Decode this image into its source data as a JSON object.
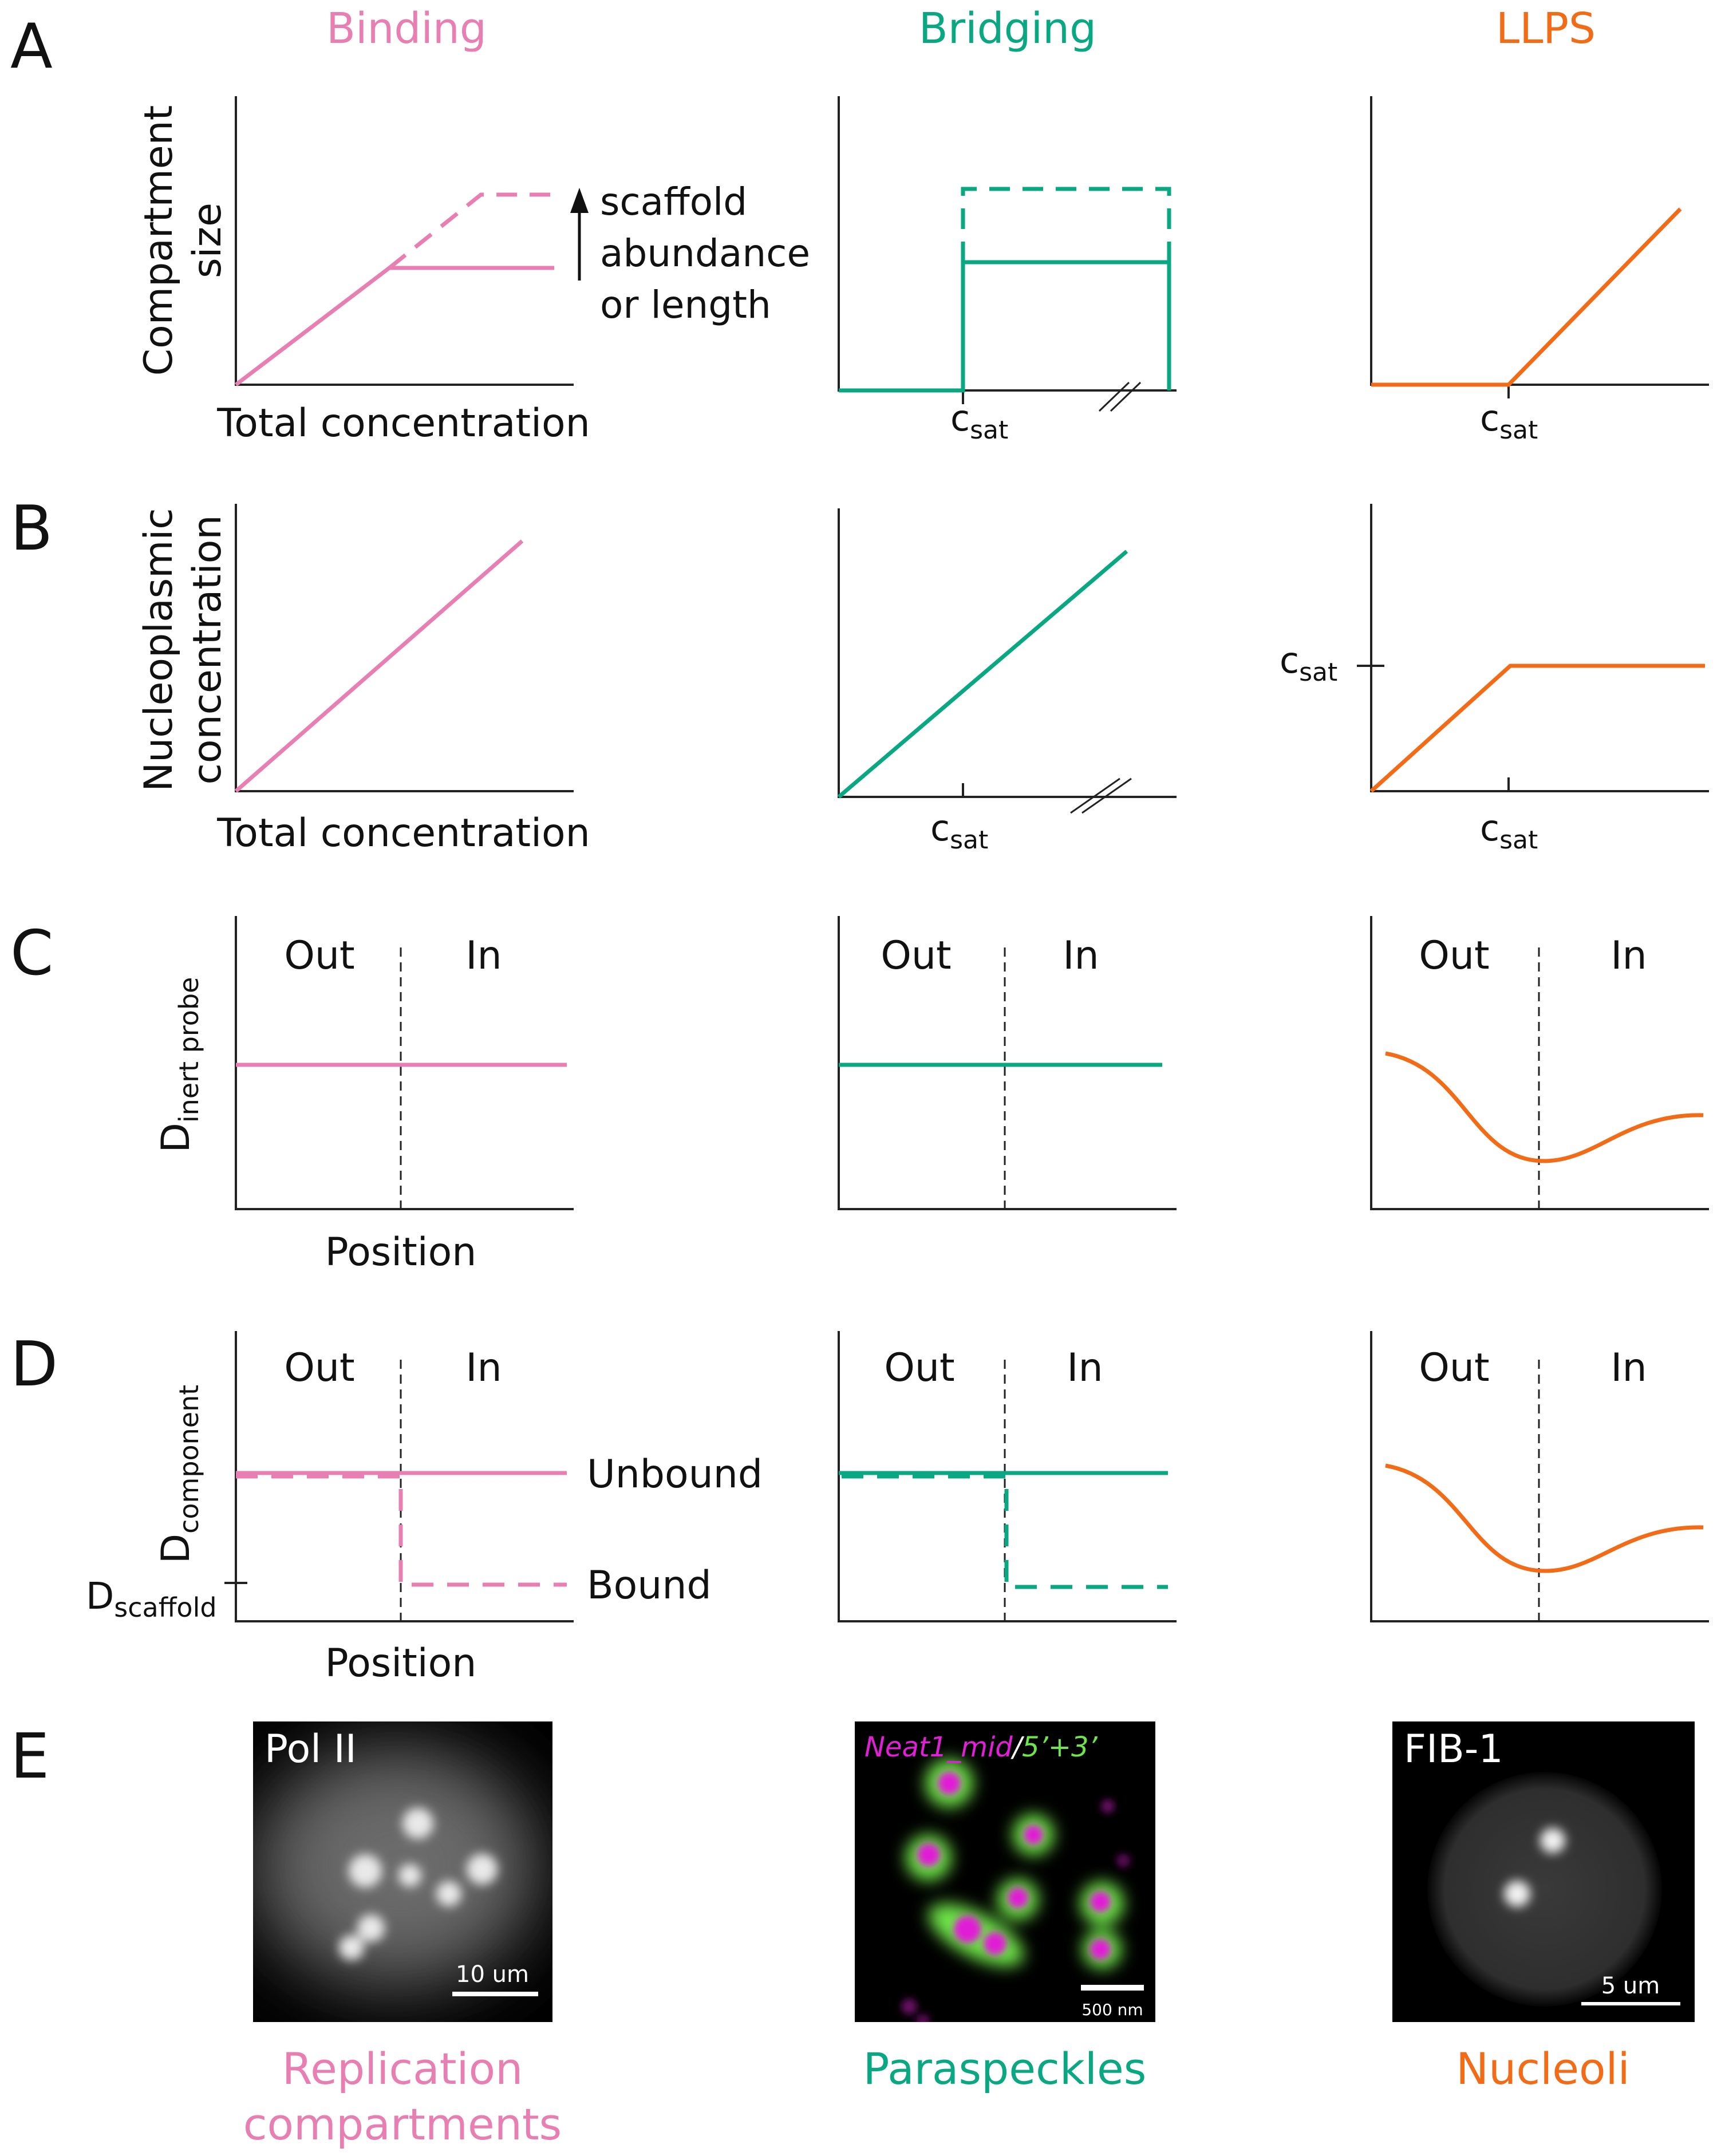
{
  "colors": {
    "binding": "#e77fb3",
    "bridging": "#0aa882",
    "llps": "#f26b16",
    "axis": "#222222",
    "text": "#111111"
  },
  "columns": {
    "binding": "Binding",
    "bridging": "Bridging",
    "llps": "LLPS"
  },
  "panels": {
    "a": "A",
    "b": "B",
    "c": "C",
    "d": "D",
    "e": "E"
  },
  "labels": {
    "compartment": "Compartment",
    "size": "size",
    "total_concentration": "Total concentration",
    "nucleoplasmic": "Nucleoplasmic",
    "concentration": "concentration",
    "position": "Position",
    "scaffold_note": [
      "scaffold",
      "abundance",
      "or length"
    ],
    "c": "c",
    "sat": "sat",
    "d": "D",
    "inert_probe": "inert probe",
    "component": "component",
    "scaffold": "scaffold",
    "out": "Out",
    "in": "In",
    "unbound": "Unbound",
    "bound": "Bound"
  },
  "images": {
    "polii": {
      "label": "Pol II",
      "scale": "10 um",
      "caption": [
        "Replication",
        "compartments"
      ]
    },
    "paraspeckles": {
      "label_magenta": "Neat1_mid",
      "label_slash": "/",
      "label_green": "5’+3’",
      "scale": "500 nm",
      "caption": "Paraspeckles"
    },
    "fib1": {
      "label": "FIB-1",
      "scale": "5 um",
      "caption": "Nucleoli"
    }
  }
}
